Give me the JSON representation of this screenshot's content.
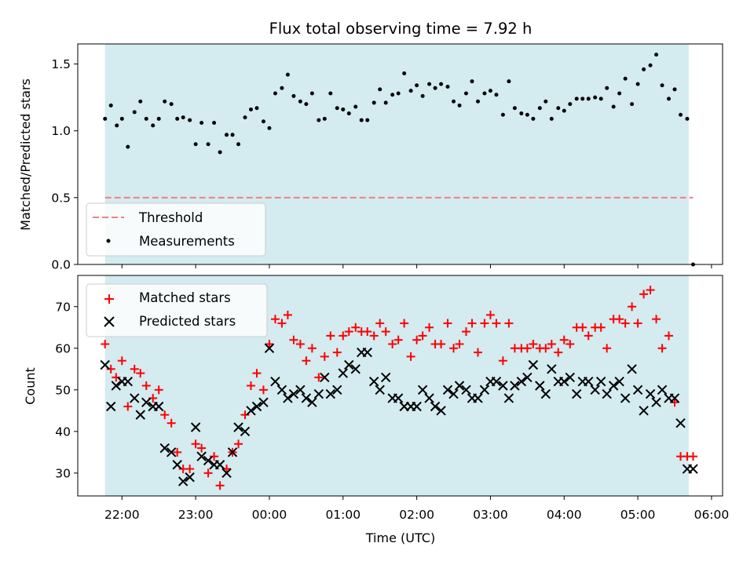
{
  "chart_data": {
    "title": "Flux total observing time = 7.92 h",
    "shade_color": "#d4ebf0",
    "xlabel": "Time (UTC)",
    "x_ticks": [
      {
        "label": "22:00",
        "h": 22
      },
      {
        "label": "23:00",
        "h": 23
      },
      {
        "label": "00:00",
        "h": 24
      },
      {
        "label": "01:00",
        "h": 25
      },
      {
        "label": "02:00",
        "h": 26
      },
      {
        "label": "03:00",
        "h": 27
      },
      {
        "label": "04:00",
        "h": 28
      },
      {
        "label": "05:00",
        "h": 29
      },
      {
        "label": "06:00",
        "h": 30
      }
    ],
    "xlim_hours": [
      21.4,
      30.15
    ],
    "shaded_span_hours": [
      21.77,
      29.69
    ],
    "panels": [
      {
        "type": "scatter",
        "ylabel": "Matched/Predicted stars",
        "ylim": [
          0,
          1.65
        ],
        "yticks": [
          "0.0",
          "0.5",
          "1.0",
          "1.5"
        ],
        "threshold": {
          "name": "Threshold",
          "value": 0.5,
          "x_range": [
            21.77,
            29.75
          ],
          "color": "#f08080"
        },
        "legend": {
          "position": "lower-left",
          "entries": [
            "Threshold",
            "Measurements"
          ]
        },
        "series": [
          {
            "name": "Measurements",
            "color": "#000000",
            "x": [
              21.77,
              21.85,
              21.93,
              22.0,
              22.08,
              22.17,
              22.25,
              22.33,
              22.42,
              22.5,
              22.58,
              22.67,
              22.75,
              22.83,
              22.92,
              23.0,
              23.08,
              23.17,
              23.25,
              23.33,
              23.42,
              23.5,
              23.58,
              23.67,
              23.75,
              23.83,
              23.92,
              24.0,
              24.08,
              24.17,
              24.25,
              24.33,
              24.42,
              24.5,
              24.58,
              24.67,
              24.75,
              24.83,
              24.92,
              25.0,
              25.08,
              25.17,
              25.25,
              25.33,
              25.42,
              25.5,
              25.58,
              25.67,
              25.75,
              25.83,
              25.92,
              26.0,
              26.08,
              26.17,
              26.25,
              26.33,
              26.42,
              26.5,
              26.58,
              26.67,
              26.75,
              26.83,
              26.92,
              27.0,
              27.08,
              27.17,
              27.25,
              27.33,
              27.42,
              27.5,
              27.58,
              27.67,
              27.75,
              27.83,
              27.92,
              28.0,
              28.08,
              28.17,
              28.25,
              28.33,
              28.42,
              28.5,
              28.58,
              28.67,
              28.75,
              28.83,
              28.92,
              29.0,
              29.08,
              29.17,
              29.25,
              29.33,
              29.42,
              29.5,
              29.58,
              29.67,
              29.75
            ],
            "y": [
              1.09,
              1.19,
              1.04,
              1.09,
              0.88,
              1.14,
              1.22,
              1.09,
              1.04,
              1.09,
              1.22,
              1.2,
              1.09,
              1.1,
              1.08,
              0.9,
              1.06,
              0.9,
              1.06,
              0.84,
              0.97,
              0.97,
              0.9,
              1.1,
              1.16,
              1.17,
              1.07,
              1.02,
              1.28,
              1.32,
              1.42,
              1.26,
              1.22,
              1.2,
              1.28,
              1.08,
              1.09,
              1.28,
              1.17,
              1.16,
              1.13,
              1.18,
              1.08,
              1.08,
              1.21,
              1.31,
              1.21,
              1.27,
              1.28,
              1.43,
              1.3,
              1.34,
              1.26,
              1.35,
              1.32,
              1.35,
              1.33,
              1.22,
              1.19,
              1.28,
              1.37,
              1.22,
              1.28,
              1.3,
              1.27,
              1.12,
              1.37,
              1.17,
              1.13,
              1.12,
              1.09,
              1.17,
              1.22,
              1.09,
              1.17,
              1.15,
              1.2,
              1.24,
              1.24,
              1.24,
              1.25,
              1.24,
              1.32,
              1.18,
              1.28,
              1.39,
              1.2,
              1.35,
              1.46,
              1.49,
              1.57,
              1.34,
              1.24,
              1.31,
              1.12,
              1.09,
              0.0
            ]
          }
        ]
      },
      {
        "type": "scatter",
        "ylabel": "Count",
        "ylim": [
          24.5,
          77.5
        ],
        "yticks": [
          "30",
          "40",
          "50",
          "60",
          "70"
        ],
        "legend": {
          "position": "upper-left",
          "entries": [
            "Matched stars",
            "Predicted stars"
          ]
        },
        "series": [
          {
            "name": "Matched stars",
            "marker": "plus",
            "color": "#ff0000",
            "x": [
              21.77,
              21.85,
              21.92,
              22.0,
              22.08,
              22.17,
              22.25,
              22.33,
              22.42,
              22.5,
              22.58,
              22.67,
              22.75,
              22.83,
              22.92,
              23.0,
              23.08,
              23.17,
              23.25,
              23.33,
              23.42,
              23.5,
              23.58,
              23.67,
              23.75,
              23.83,
              23.92,
              24.0,
              24.08,
              24.17,
              24.25,
              24.33,
              24.42,
              24.5,
              24.58,
              24.67,
              24.75,
              24.83,
              24.92,
              25.0,
              25.08,
              25.17,
              25.25,
              25.33,
              25.42,
              25.5,
              25.58,
              25.67,
              25.75,
              25.83,
              25.92,
              26.0,
              26.08,
              26.17,
              26.25,
              26.33,
              26.42,
              26.5,
              26.58,
              26.67,
              26.75,
              26.83,
              26.92,
              27.0,
              27.08,
              27.17,
              27.25,
              27.33,
              27.42,
              27.5,
              27.58,
              27.67,
              27.75,
              27.83,
              27.92,
              28.0,
              28.08,
              28.17,
              28.25,
              28.33,
              28.42,
              28.5,
              28.58,
              28.67,
              28.75,
              28.83,
              28.92,
              29.0,
              29.08,
              29.17,
              29.25,
              29.33,
              29.42,
              29.5,
              29.58,
              29.67,
              29.75
            ],
            "y": [
              61,
              55,
              53,
              57,
              46,
              55,
              54,
              51,
              48,
              50,
              44,
              42,
              35,
              31,
              31,
              37,
              36,
              30,
              34,
              27,
              31,
              35,
              37,
              44,
              51,
              54,
              50,
              61,
              67,
              66,
              68,
              62,
              61,
              57,
              60,
              53,
              58,
              63,
              59,
              63,
              64,
              65,
              64,
              64,
              63,
              66,
              64,
              61,
              62,
              66,
              58,
              62,
              63,
              65,
              61,
              61,
              66,
              60,
              61,
              64,
              66,
              59,
              66,
              68,
              66,
              57,
              66,
              60,
              60,
              60,
              61,
              60,
              60,
              61,
              59,
              62,
              61,
              65,
              65,
              63,
              65,
              65,
              60,
              67,
              67,
              66,
              70,
              66,
              73,
              74,
              67,
              60,
              63,
              47,
              34,
              34,
              34
            ]
          },
          {
            "name": "Predicted stars",
            "marker": "cross",
            "color": "#000000",
            "x": [
              21.77,
              21.85,
              21.92,
              22.0,
              22.08,
              22.17,
              22.25,
              22.33,
              22.42,
              22.5,
              22.58,
              22.67,
              22.75,
              22.83,
              22.92,
              23.0,
              23.08,
              23.17,
              23.25,
              23.33,
              23.42,
              23.5,
              23.58,
              23.67,
              23.75,
              23.83,
              23.92,
              24.0,
              24.08,
              24.17,
              24.25,
              24.33,
              24.42,
              24.5,
              24.58,
              24.67,
              24.75,
              24.83,
              24.92,
              25.0,
              25.08,
              25.17,
              25.25,
              25.33,
              25.42,
              25.5,
              25.58,
              25.67,
              25.75,
              25.83,
              25.92,
              26.0,
              26.08,
              26.17,
              26.25,
              26.33,
              26.42,
              26.5,
              26.58,
              26.67,
              26.75,
              26.83,
              26.92,
              27.0,
              27.08,
              27.17,
              27.25,
              27.33,
              27.42,
              27.5,
              27.58,
              27.67,
              27.75,
              27.83,
              27.92,
              28.0,
              28.08,
              28.17,
              28.25,
              28.33,
              28.42,
              28.5,
              28.58,
              28.67,
              28.75,
              28.83,
              28.92,
              29.0,
              29.08,
              29.17,
              29.25,
              29.33,
              29.42,
              29.5,
              29.58,
              29.67,
              29.75
            ],
            "y": [
              56,
              46,
              51,
              52,
              52,
              48,
              44,
              47,
              46,
              46,
              36,
              35,
              32,
              28,
              29,
              41,
              34,
              33,
              32,
              32,
              30,
              35,
              41,
              40,
              45,
              46,
              47,
              60,
              52,
              50,
              48,
              49,
              50,
              48,
              47,
              49,
              53,
              49,
              50,
              54,
              56,
              55,
              59,
              59,
              52,
              50,
              53,
              48,
              48,
              46,
              46,
              46,
              50,
              48,
              46,
              45,
              50,
              49,
              51,
              50,
              48,
              48,
              50,
              52,
              52,
              51,
              48,
              51,
              52,
              53,
              56,
              51,
              49,
              55,
              52,
              52,
              53,
              49,
              52,
              52,
              50,
              52,
              49,
              51,
              52,
              48,
              55,
              50,
              45,
              49,
              47,
              50,
              48,
              48,
              42,
              31,
              31
            ]
          }
        ]
      }
    ]
  }
}
